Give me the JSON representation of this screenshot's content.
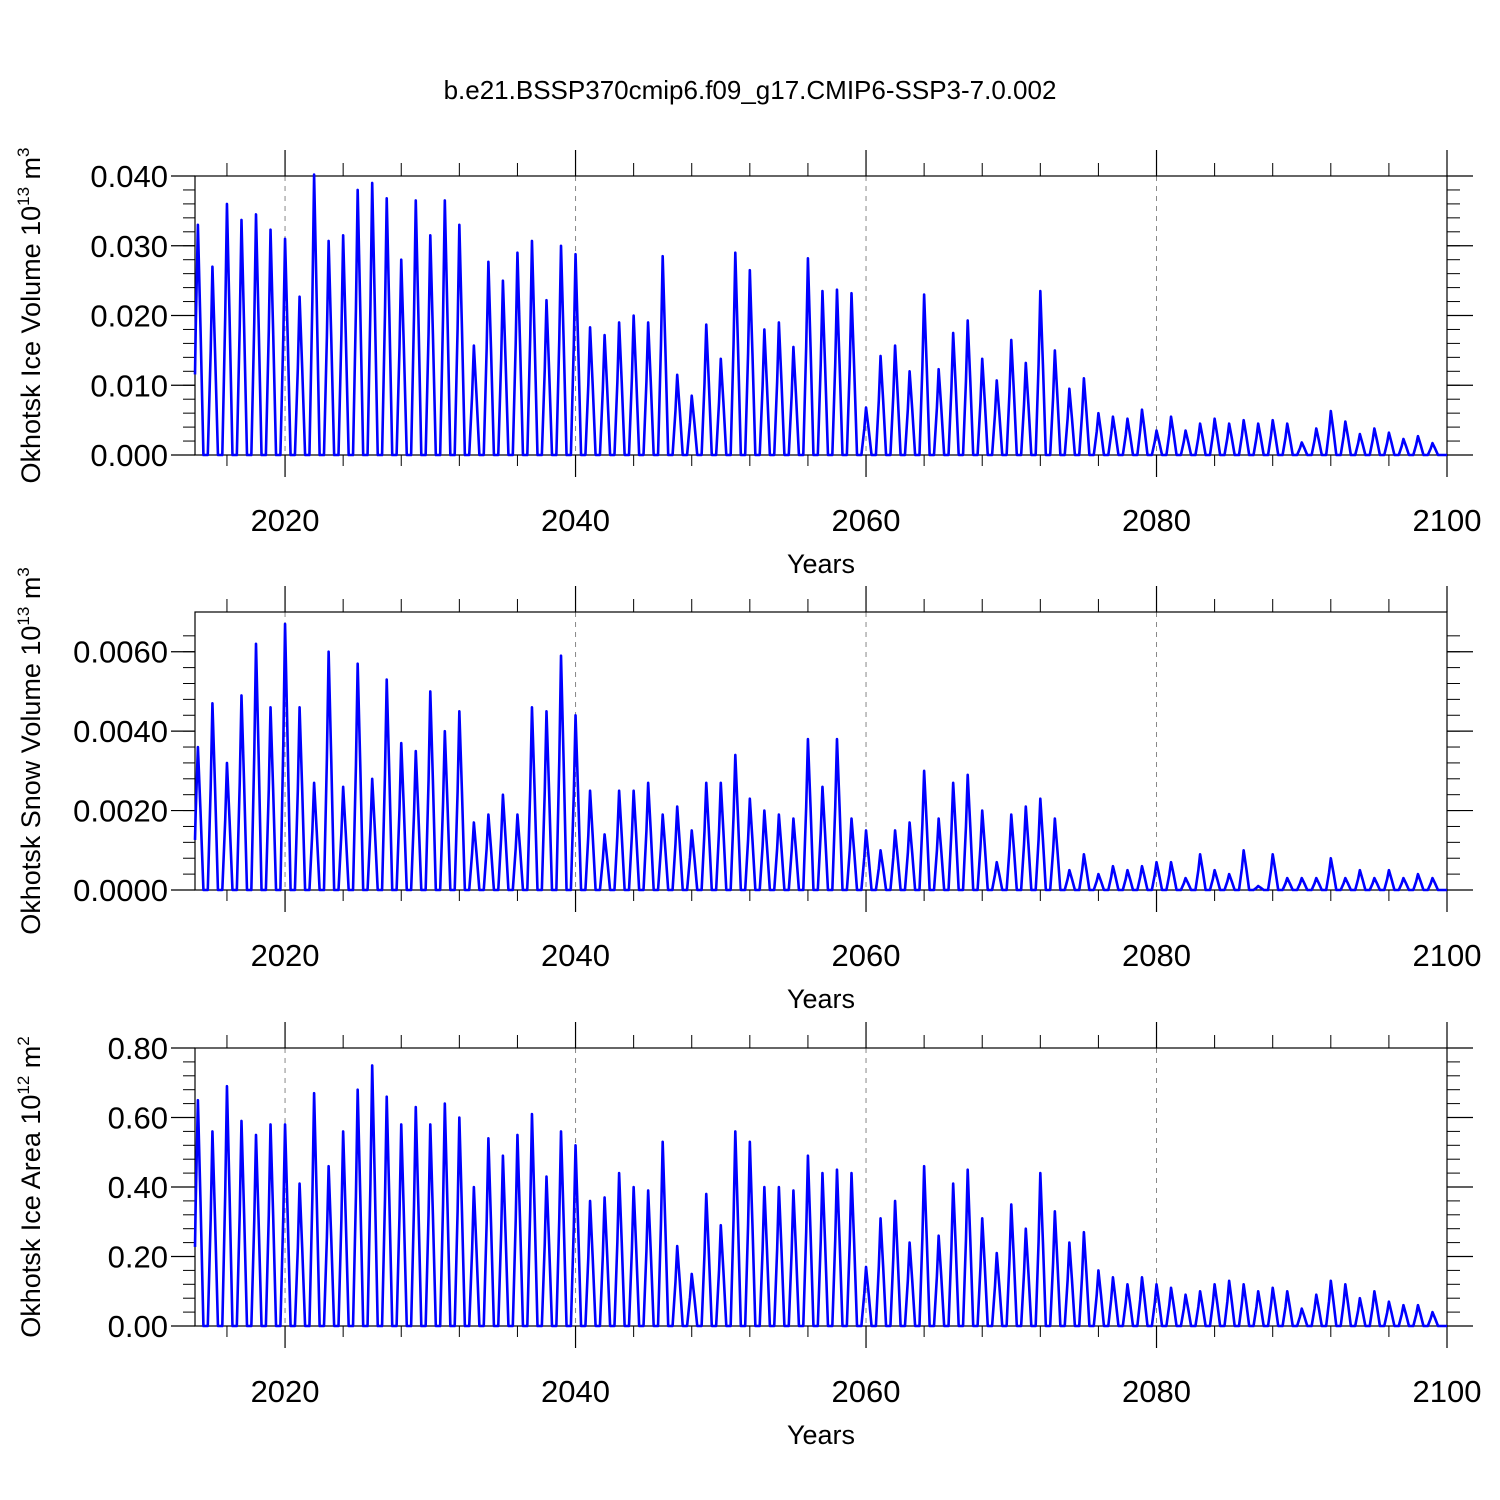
{
  "figure": {
    "title": "b.e21.BSSP370cmip6.f09_g17.CMIP6-SSP3-7.0.002"
  },
  "chart_data": [
    {
      "type": "line",
      "ylabel": "Okhotsk Ice Volume 10",
      "ylabel_exp": "13",
      "ylabel_unit": " m",
      "ylabel_unit_exp": "3",
      "xlabel": "Years",
      "xlim": [
        2013.8,
        2100
      ],
      "ylim": [
        0,
        0.04
      ],
      "xticks": [
        2020,
        2040,
        2060,
        2080,
        2100
      ],
      "xtick_labels": [
        "2020",
        "2040",
        "2060",
        "2080",
        "2100"
      ],
      "yticks": [
        0,
        0.01,
        0.02,
        0.03,
        0.04
      ],
      "ytick_labels": [
        "0.000",
        "0.010",
        "0.020",
        "0.030",
        "0.040"
      ],
      "vgrid": [
        2020,
        2040,
        2060,
        2080
      ],
      "line_color": "#0000ff",
      "series": [
        {
          "x": [
            2014,
            2015,
            2016,
            2017,
            2018,
            2019,
            2020,
            2021,
            2022,
            2023,
            2024,
            2025,
            2026,
            2027,
            2028,
            2029,
            2030,
            2031,
            2032,
            2033,
            2034,
            2035,
            2036,
            2037,
            2038,
            2039,
            2040,
            2041,
            2042,
            2043,
            2044,
            2045,
            2046,
            2047,
            2048,
            2049,
            2050,
            2051,
            2052,
            2053,
            2054,
            2055,
            2056,
            2057,
            2058,
            2059,
            2060,
            2061,
            2062,
            2063,
            2064,
            2065,
            2066,
            2067,
            2068,
            2069,
            2070,
            2071,
            2072,
            2073,
            2074,
            2075,
            2076,
            2077,
            2078,
            2079,
            2080,
            2081,
            2082,
            2083,
            2084,
            2085,
            2086,
            2087,
            2088,
            2089,
            2090,
            2091,
            2092,
            2093,
            2094,
            2095,
            2096,
            2097,
            2098,
            2099
          ],
          "values": [
            0.033,
            0.027,
            0.036,
            0.0337,
            0.0345,
            0.0323,
            0.031,
            0.0227,
            0.0402,
            0.0307,
            0.0315,
            0.038,
            0.039,
            0.0368,
            0.028,
            0.0365,
            0.0315,
            0.0365,
            0.033,
            0.0157,
            0.0277,
            0.025,
            0.029,
            0.0307,
            0.0222,
            0.03,
            0.0288,
            0.0183,
            0.0172,
            0.019,
            0.02,
            0.019,
            0.0285,
            0.0115,
            0.0085,
            0.0187,
            0.0138,
            0.029,
            0.0265,
            0.018,
            0.019,
            0.0155,
            0.0282,
            0.0235,
            0.0237,
            0.0232,
            0.0068,
            0.0142,
            0.0157,
            0.012,
            0.023,
            0.0123,
            0.0175,
            0.0193,
            0.0138,
            0.0107,
            0.0165,
            0.0132,
            0.0235,
            0.015,
            0.0095,
            0.011,
            0.006,
            0.0055,
            0.0052,
            0.0065,
            0.0035,
            0.0055,
            0.0035,
            0.0045,
            0.0052,
            0.0045,
            0.005,
            0.0045,
            0.005,
            0.0045,
            0.0018,
            0.0038,
            0.0063,
            0.0048,
            0.003,
            0.0038,
            0.0032,
            0.0023,
            0.0027,
            0.0017
          ]
        }
      ]
    },
    {
      "type": "line",
      "ylabel": "Okhotsk Snow Volume 10",
      "ylabel_exp": "13",
      "ylabel_unit": " m",
      "ylabel_unit_exp": "3",
      "xlabel": "Years",
      "xlim": [
        2013.8,
        2100
      ],
      "ylim": [
        0,
        0.007
      ],
      "xticks": [
        2020,
        2040,
        2060,
        2080,
        2100
      ],
      "xtick_labels": [
        "2020",
        "2040",
        "2060",
        "2080",
        "2100"
      ],
      "yticks": [
        0,
        0.002,
        0.004,
        0.006
      ],
      "ytick_labels": [
        "0.0000",
        "0.0020",
        "0.0040",
        "0.0060"
      ],
      "vgrid": [
        2020,
        2040,
        2060,
        2080
      ],
      "line_color": "#0000ff",
      "series": [
        {
          "x": [
            2014,
            2015,
            2016,
            2017,
            2018,
            2019,
            2020,
            2021,
            2022,
            2023,
            2024,
            2025,
            2026,
            2027,
            2028,
            2029,
            2030,
            2031,
            2032,
            2033,
            2034,
            2035,
            2036,
            2037,
            2038,
            2039,
            2040,
            2041,
            2042,
            2043,
            2044,
            2045,
            2046,
            2047,
            2048,
            2049,
            2050,
            2051,
            2052,
            2053,
            2054,
            2055,
            2056,
            2057,
            2058,
            2059,
            2060,
            2061,
            2062,
            2063,
            2064,
            2065,
            2066,
            2067,
            2068,
            2069,
            2070,
            2071,
            2072,
            2073,
            2074,
            2075,
            2076,
            2077,
            2078,
            2079,
            2080,
            2081,
            2082,
            2083,
            2084,
            2085,
            2086,
            2087,
            2088,
            2089,
            2090,
            2091,
            2092,
            2093,
            2094,
            2095,
            2096,
            2097,
            2098,
            2099
          ],
          "values": [
            0.0036,
            0.0047,
            0.0032,
            0.0049,
            0.0062,
            0.0046,
            0.0067,
            0.0046,
            0.0027,
            0.006,
            0.0026,
            0.0057,
            0.0028,
            0.0053,
            0.0037,
            0.0035,
            0.005,
            0.004,
            0.0045,
            0.0017,
            0.0019,
            0.0024,
            0.0019,
            0.0046,
            0.0045,
            0.0059,
            0.0044,
            0.0025,
            0.0014,
            0.0025,
            0.0025,
            0.0027,
            0.0019,
            0.0021,
            0.0015,
            0.0027,
            0.0027,
            0.0034,
            0.0023,
            0.002,
            0.0019,
            0.0018,
            0.0038,
            0.0026,
            0.0038,
            0.0018,
            0.0015,
            0.001,
            0.0015,
            0.0017,
            0.003,
            0.0018,
            0.0027,
            0.0029,
            0.002,
            0.0007,
            0.0019,
            0.0021,
            0.0023,
            0.0018,
            0.0005,
            0.0009,
            0.0004,
            0.0006,
            0.0005,
            0.0006,
            0.0007,
            0.0007,
            0.0003,
            0.0009,
            0.0005,
            0.0004,
            0.001,
            0.0001,
            0.0009,
            0.0003,
            0.0003,
            0.0003,
            0.0008,
            0.0003,
            0.0005,
            0.0003,
            0.0005,
            0.0003,
            0.0004,
            0.0003
          ]
        }
      ]
    },
    {
      "type": "line",
      "ylabel": "Okhotsk Ice Area 10",
      "ylabel_exp": "12",
      "ylabel_unit": " m",
      "ylabel_unit_exp": "2",
      "xlabel": "Years",
      "xlim": [
        2013.8,
        2100
      ],
      "ylim": [
        0,
        0.8
      ],
      "xticks": [
        2020,
        2040,
        2060,
        2080,
        2100
      ],
      "xtick_labels": [
        "2020",
        "2040",
        "2060",
        "2080",
        "2100"
      ],
      "yticks": [
        0,
        0.2,
        0.4,
        0.6,
        0.8
      ],
      "ytick_labels": [
        "0.00",
        "0.20",
        "0.40",
        "0.60",
        "0.80"
      ],
      "vgrid": [
        2020,
        2040,
        2060,
        2080
      ],
      "line_color": "#0000ff",
      "series": [
        {
          "x": [
            2014,
            2015,
            2016,
            2017,
            2018,
            2019,
            2020,
            2021,
            2022,
            2023,
            2024,
            2025,
            2026,
            2027,
            2028,
            2029,
            2030,
            2031,
            2032,
            2033,
            2034,
            2035,
            2036,
            2037,
            2038,
            2039,
            2040,
            2041,
            2042,
            2043,
            2044,
            2045,
            2046,
            2047,
            2048,
            2049,
            2050,
            2051,
            2052,
            2053,
            2054,
            2055,
            2056,
            2057,
            2058,
            2059,
            2060,
            2061,
            2062,
            2063,
            2064,
            2065,
            2066,
            2067,
            2068,
            2069,
            2070,
            2071,
            2072,
            2073,
            2074,
            2075,
            2076,
            2077,
            2078,
            2079,
            2080,
            2081,
            2082,
            2083,
            2084,
            2085,
            2086,
            2087,
            2088,
            2089,
            2090,
            2091,
            2092,
            2093,
            2094,
            2095,
            2096,
            2097,
            2098,
            2099
          ],
          "values": [
            0.65,
            0.56,
            0.69,
            0.59,
            0.55,
            0.58,
            0.58,
            0.41,
            0.67,
            0.46,
            0.56,
            0.68,
            0.75,
            0.66,
            0.58,
            0.63,
            0.58,
            0.64,
            0.6,
            0.4,
            0.54,
            0.49,
            0.55,
            0.61,
            0.43,
            0.56,
            0.52,
            0.36,
            0.37,
            0.44,
            0.4,
            0.39,
            0.53,
            0.23,
            0.15,
            0.38,
            0.29,
            0.56,
            0.53,
            0.4,
            0.4,
            0.39,
            0.49,
            0.44,
            0.45,
            0.44,
            0.17,
            0.31,
            0.36,
            0.24,
            0.46,
            0.26,
            0.41,
            0.45,
            0.31,
            0.21,
            0.35,
            0.28,
            0.44,
            0.33,
            0.24,
            0.27,
            0.16,
            0.14,
            0.12,
            0.14,
            0.12,
            0.11,
            0.09,
            0.1,
            0.12,
            0.13,
            0.12,
            0.1,
            0.11,
            0.1,
            0.05,
            0.09,
            0.13,
            0.12,
            0.08,
            0.1,
            0.07,
            0.06,
            0.06,
            0.04
          ]
        }
      ]
    }
  ]
}
